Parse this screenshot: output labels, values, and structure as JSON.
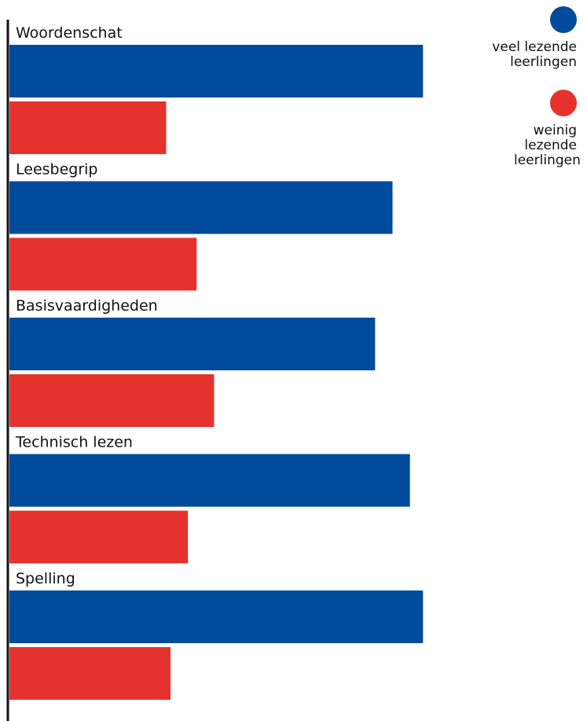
{
  "chart_data": {
    "type": "bar",
    "orientation": "horizontal",
    "categories": [
      "Woordenschat",
      "Leesbegrip",
      "Basisvaardigheden",
      "Technisch lezen",
      "Spelling"
    ],
    "series": [
      {
        "name": "veel lezende leerlingen",
        "color": "#004b9b",
        "values": [
          95,
          88,
          84,
          92,
          95
        ]
      },
      {
        "name": "weinig lezende leerlingen",
        "color": "#e5322d",
        "values": [
          36,
          43,
          47,
          41,
          37
        ]
      }
    ],
    "xlim": [
      0,
      100
    ],
    "grid": false,
    "legend_position": "top-right"
  }
}
